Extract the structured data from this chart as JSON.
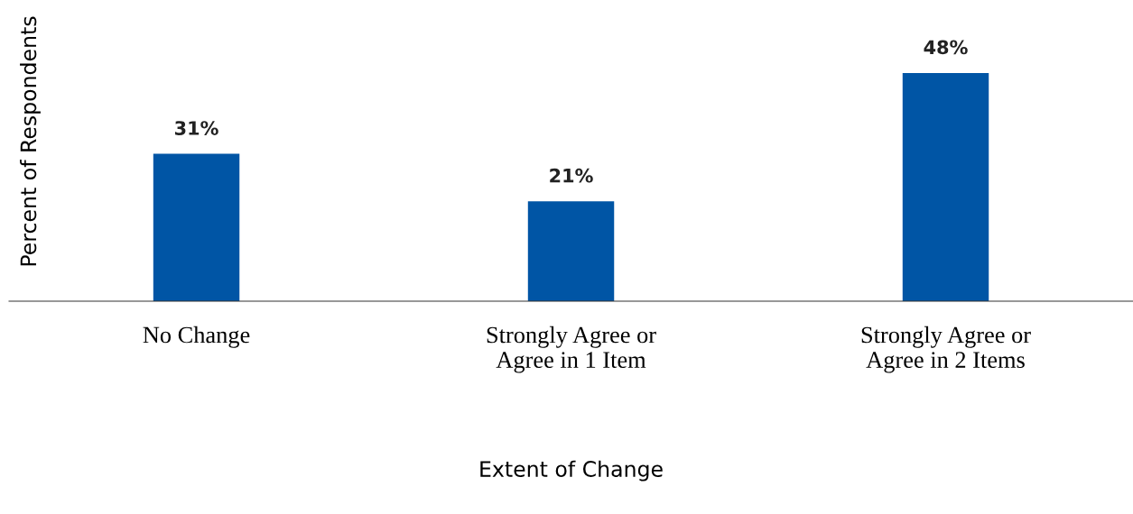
{
  "chart_data": {
    "type": "bar",
    "xlabel": "Extent of Change",
    "ylabel": "Percent of Respondents",
    "categories": [
      "No Change",
      "Strongly Agree or\nAgree in 1 Item",
      "Strongly Agree or\nAgree in 2 Items"
    ],
    "values": [
      31,
      21,
      48
    ],
    "color": "#0055a5",
    "value_labels": [
      "31%",
      "21%",
      "48%"
    ],
    "tick_labels": "x"
  }
}
